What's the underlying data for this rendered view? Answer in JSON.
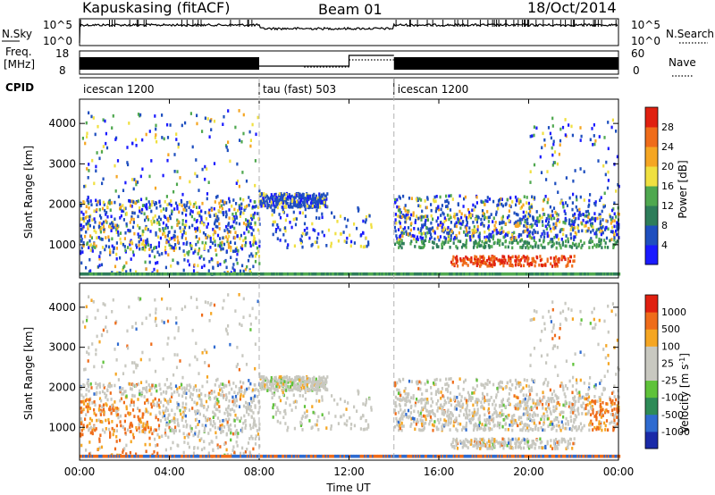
{
  "header": {
    "station": "Kapuskasing (fitACF)",
    "beam": "Beam 01",
    "date": "18/Oct/2014"
  },
  "panels": {
    "nsky_label": "N.Sky",
    "nsky_tick_top": "10^5",
    "nsky_tick_bottom": "10^0",
    "nsearch_tick_top": "10^5",
    "nsearch_tick_bottom": "10^0",
    "nsearch_label": "N.Search",
    "freq_label_1": "Freq.",
    "freq_label_2": "[MHz]",
    "freq_tick_top": "18",
    "freq_tick_bottom": "8",
    "nave_tick_top": "60",
    "nave_tick_bottom": "0",
    "nave_label": "Nave",
    "cpid_label": "CPID",
    "cpid_segments": [
      {
        "label": "icescan 1200",
        "start_h": 0,
        "end_h": 8
      },
      {
        "label": "tau (fast) 503",
        "start_h": 8,
        "end_h": 14
      },
      {
        "label": "icescan 1200",
        "start_h": 14,
        "end_h": 24
      }
    ]
  },
  "chart_data": [
    {
      "type": "heatmap",
      "title": "",
      "xlabel": "",
      "ylabel": "Slant Range [km]",
      "xlim": [
        0,
        24
      ],
      "ylim": [
        180,
        4600
      ],
      "yticks": [
        1000,
        2000,
        3000,
        4000
      ],
      "colorbar": {
        "label": "Power [dB]",
        "ticks": [
          "4",
          "8",
          "12",
          "16",
          "20",
          "24",
          "28"
        ],
        "colors": [
          "#1a1aff",
          "#1f4fbf",
          "#2e7d5a",
          "#4fa84f",
          "#f0e040",
          "#f5a623",
          "#ef6c1a",
          "#e02010"
        ]
      },
      "features": [
        {
          "desc": "scatter band",
          "x": [
            0,
            8
          ],
          "y": [
            800,
            2000
          ]
        },
        {
          "desc": "strong echo band",
          "x": [
            14,
            24
          ],
          "y": [
            900,
            1700
          ]
        },
        {
          "desc": "high power arc",
          "x": [
            16.5,
            22
          ],
          "y": [
            500,
            700
          ]
        }
      ]
    },
    {
      "type": "heatmap",
      "title": "",
      "xlabel": "Time UT",
      "ylabel": "Slant Range [km]",
      "xlim": [
        0,
        24
      ],
      "ylim": [
        180,
        4600
      ],
      "yticks": [
        1000,
        2000,
        3000,
        4000
      ],
      "xticks": [
        "00:00",
        "04:00",
        "08:00",
        "12:00",
        "16:00",
        "20:00",
        "00:00"
      ],
      "colorbar": {
        "label": "Velocity [m s^-1]",
        "ticks": [
          "1000",
          "500",
          "100",
          "25",
          "-25",
          "-100",
          "-500",
          "-1000"
        ],
        "colors": [
          "#1a2aa8",
          "#2f6bd0",
          "#2e8b57",
          "#5fc23a",
          "#c8c8c0",
          "#c8c8c0",
          "#f5a623",
          "#ef6c1a",
          "#e02010"
        ]
      }
    }
  ],
  "colors": {
    "grey_scatter": "#c8c8c0"
  }
}
